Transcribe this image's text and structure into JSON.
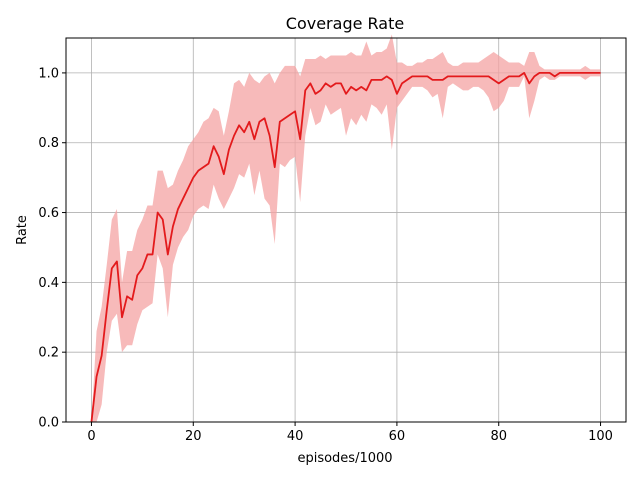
{
  "chart_data": {
    "type": "line",
    "title": "Coverage Rate",
    "xlabel": "episodes/1000",
    "ylabel": "Rate",
    "xlim": [
      -5,
      105
    ],
    "ylim": [
      0.0,
      1.1
    ],
    "grid": true,
    "legend": "none",
    "x_ticks": [
      0,
      20,
      40,
      60,
      80,
      100
    ],
    "x_tick_labels": [
      "0",
      "20",
      "40",
      "60",
      "80",
      "100"
    ],
    "y_ticks": [
      0.0,
      0.2,
      0.4,
      0.6,
      0.8,
      1.0
    ],
    "y_tick_labels": [
      "0.0",
      "0.2",
      "0.4",
      "0.6",
      "0.8",
      "1.0"
    ],
    "colors": {
      "line": "#e31a1c",
      "band": "#f4a3a3",
      "grid": "#b0b0b0"
    },
    "series": [
      {
        "x": [
          0,
          1,
          2,
          3,
          4,
          5,
          6,
          7,
          8,
          9,
          10,
          11,
          12,
          13,
          14,
          15,
          16,
          17,
          18,
          19,
          20,
          21,
          22,
          23,
          24,
          25,
          26,
          27,
          28,
          29,
          30,
          31,
          32,
          33,
          34,
          35,
          36,
          37,
          38,
          39,
          40,
          41,
          42,
          43,
          44,
          45,
          46,
          47,
          48,
          49,
          50,
          51,
          52,
          53,
          54,
          55,
          56,
          57,
          58,
          59,
          60,
          61,
          62,
          63,
          64,
          65,
          66,
          67,
          68,
          69,
          70,
          71,
          72,
          73,
          74,
          75,
          76,
          77,
          78,
          79,
          80,
          81,
          82,
          83,
          84,
          85,
          86,
          87,
          88,
          89,
          90,
          91,
          92,
          93,
          94,
          95,
          96,
          97,
          98,
          99,
          100
        ],
        "mean": [
          0.0,
          0.13,
          0.19,
          0.32,
          0.44,
          0.46,
          0.3,
          0.36,
          0.35,
          0.42,
          0.44,
          0.48,
          0.48,
          0.6,
          0.58,
          0.48,
          0.56,
          0.61,
          0.64,
          0.67,
          0.7,
          0.72,
          0.73,
          0.74,
          0.79,
          0.76,
          0.71,
          0.78,
          0.82,
          0.85,
          0.83,
          0.86,
          0.81,
          0.86,
          0.87,
          0.82,
          0.73,
          0.86,
          0.87,
          0.88,
          0.89,
          0.81,
          0.95,
          0.97,
          0.94,
          0.95,
          0.97,
          0.96,
          0.97,
          0.97,
          0.94,
          0.96,
          0.95,
          0.96,
          0.95,
          0.98,
          0.98,
          0.98,
          0.99,
          0.98,
          0.94,
          0.97,
          0.98,
          0.99,
          0.99,
          0.99,
          0.99,
          0.98,
          0.98,
          0.98,
          0.99,
          0.99,
          0.99,
          0.99,
          0.99,
          0.99,
          0.99,
          0.99,
          0.99,
          0.98,
          0.97,
          0.98,
          0.99,
          0.99,
          0.99,
          1.0,
          0.97,
          0.99,
          1.0,
          1.0,
          1.0,
          0.99,
          1.0,
          1.0,
          1.0,
          1.0,
          1.0,
          1.0,
          1.0,
          1.0,
          1.0
        ],
        "lower": [
          0.0,
          0.0,
          0.05,
          0.2,
          0.29,
          0.31,
          0.2,
          0.22,
          0.22,
          0.28,
          0.32,
          0.33,
          0.34,
          0.48,
          0.44,
          0.3,
          0.45,
          0.5,
          0.53,
          0.55,
          0.59,
          0.61,
          0.62,
          0.61,
          0.68,
          0.64,
          0.61,
          0.64,
          0.67,
          0.71,
          0.7,
          0.74,
          0.65,
          0.72,
          0.64,
          0.62,
          0.51,
          0.74,
          0.73,
          0.75,
          0.76,
          0.63,
          0.82,
          0.9,
          0.85,
          0.86,
          0.91,
          0.88,
          0.89,
          0.9,
          0.82,
          0.87,
          0.85,
          0.88,
          0.86,
          0.91,
          0.9,
          0.88,
          0.91,
          0.78,
          0.9,
          0.92,
          0.94,
          0.96,
          0.96,
          0.96,
          0.95,
          0.93,
          0.94,
          0.87,
          0.96,
          0.97,
          0.96,
          0.95,
          0.95,
          0.96,
          0.96,
          0.95,
          0.93,
          0.89,
          0.9,
          0.92,
          0.96,
          0.96,
          0.96,
          0.99,
          0.87,
          0.92,
          0.98,
          0.99,
          0.98,
          0.98,
          0.99,
          0.99,
          0.99,
          0.99,
          0.99,
          0.98,
          0.99,
          0.99,
          0.99
        ],
        "upper": [
          0.0,
          0.26,
          0.33,
          0.45,
          0.58,
          0.61,
          0.4,
          0.49,
          0.49,
          0.55,
          0.58,
          0.62,
          0.62,
          0.72,
          0.72,
          0.67,
          0.68,
          0.72,
          0.75,
          0.79,
          0.81,
          0.83,
          0.86,
          0.87,
          0.9,
          0.89,
          0.82,
          0.89,
          0.97,
          0.98,
          0.96,
          1.0,
          0.98,
          0.97,
          0.99,
          1.0,
          0.97,
          1.0,
          1.02,
          1.02,
          1.02,
          0.99,
          1.04,
          1.04,
          1.04,
          1.05,
          1.04,
          1.05,
          1.05,
          1.05,
          1.05,
          1.06,
          1.05,
          1.05,
          1.09,
          1.05,
          1.06,
          1.06,
          1.07,
          1.11,
          1.03,
          1.03,
          1.02,
          1.02,
          1.03,
          1.03,
          1.04,
          1.04,
          1.05,
          1.06,
          1.03,
          1.02,
          1.02,
          1.03,
          1.03,
          1.03,
          1.03,
          1.04,
          1.05,
          1.06,
          1.05,
          1.04,
          1.03,
          1.03,
          1.03,
          1.02,
          1.06,
          1.06,
          1.02,
          1.01,
          1.01,
          1.01,
          1.01,
          1.01,
          1.01,
          1.01,
          1.01,
          1.02,
          1.01,
          1.01,
          1.01
        ]
      }
    ]
  }
}
